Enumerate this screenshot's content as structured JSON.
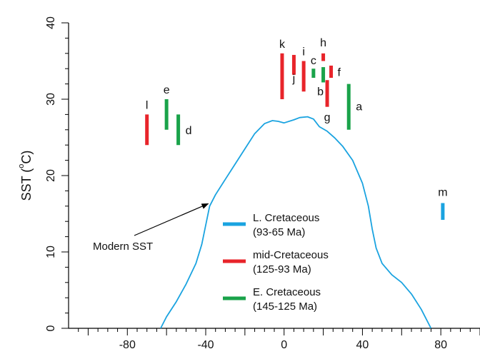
{
  "chart_data": {
    "type": "scatter",
    "title": "",
    "xlabel": "",
    "ylabel": "SST (°C)",
    "ylabel_parts": {
      "main": "SST (",
      "degree": "o",
      "unit": "C)"
    },
    "xlim": [
      -110,
      100
    ],
    "ylim": [
      0,
      40
    ],
    "xticks": [
      -80,
      -40,
      0,
      40,
      80
    ],
    "xtick_labels": [
      "-80",
      "-40",
      "0",
      "40",
      "80"
    ],
    "yticks": [
      0,
      10,
      20,
      30,
      40
    ],
    "ytick_labels": [
      "0",
      "10",
      "20",
      "30",
      "40"
    ],
    "grid": false,
    "legend_position": "bottom-center",
    "series": [
      {
        "name": "L. Cretaceous",
        "sublabel": "(93-65 Ma)",
        "color": "#1aa3e0",
        "ranges": [
          {
            "label": "m",
            "x": 81,
            "ymin": 14.2,
            "ymax": 16.4
          }
        ]
      },
      {
        "name": "mid-Cretaceous",
        "sublabel": "(125-93 Ma)",
        "color": "#e8242a",
        "ranges": [
          {
            "label": "l",
            "x": -70,
            "ymin": 24,
            "ymax": 28
          },
          {
            "label": "k",
            "x": -1,
            "ymin": 30,
            "ymax": 36
          },
          {
            "label": "j",
            "x": 5,
            "ymin": 33.2,
            "ymax": 35.8
          },
          {
            "label": "i",
            "x": 10,
            "ymin": 31,
            "ymax": 35
          },
          {
            "label": "h",
            "x": 20,
            "ymin": 35,
            "ymax": 36
          },
          {
            "label": "g",
            "x": 22,
            "ymin": 29,
            "ymax": 32.5
          },
          {
            "label": "f",
            "x": 24,
            "ymin": 32.8,
            "ymax": 34.4
          }
        ]
      },
      {
        "name": "E. Cretaceous",
        "sublabel": "(145-125 Ma)",
        "color": "#1aa34a",
        "ranges": [
          {
            "label": "e",
            "x": -60,
            "ymin": 26,
            "ymax": 30
          },
          {
            "label": "d",
            "x": -54,
            "ymin": 24,
            "ymax": 28
          },
          {
            "label": "c",
            "x": 15,
            "ymin": 32.8,
            "ymax": 34
          },
          {
            "label": "b",
            "x": 20,
            "ymin": 32.2,
            "ymax": 34.2
          },
          {
            "label": "a",
            "x": 33,
            "ymin": 26,
            "ymax": 32
          }
        ]
      }
    ],
    "curve": {
      "color": "#1aa3e0",
      "points": [
        [
          -63,
          0
        ],
        [
          -60,
          1.5
        ],
        [
          -55,
          3.5
        ],
        [
          -50,
          5.8
        ],
        [
          -45,
          8.5
        ],
        [
          -42,
          11
        ],
        [
          -40,
          13.5
        ],
        [
          -38,
          16
        ],
        [
          -35,
          17.5
        ],
        [
          -30,
          19.5
        ],
        [
          -25,
          21.5
        ],
        [
          -20,
          23.5
        ],
        [
          -15,
          25.5
        ],
        [
          -10,
          26.8
        ],
        [
          -6,
          27.2
        ],
        [
          -3,
          27.1
        ],
        [
          0,
          26.9
        ],
        [
          5,
          27.3
        ],
        [
          8,
          27.6
        ],
        [
          12,
          27.7
        ],
        [
          15,
          27.4
        ],
        [
          18,
          26.4
        ],
        [
          22,
          25.8
        ],
        [
          26,
          24.9
        ],
        [
          30,
          23.8
        ],
        [
          35,
          22
        ],
        [
          40,
          19
        ],
        [
          43,
          16
        ],
        [
          45,
          13
        ],
        [
          47,
          10.5
        ],
        [
          50,
          8.5
        ],
        [
          55,
          7
        ],
        [
          60,
          6
        ],
        [
          65,
          4.5
        ],
        [
          70,
          2.5
        ],
        [
          75,
          0
        ]
      ]
    },
    "annotation": {
      "text": "Modern SST",
      "target": [
        -38,
        16.5
      ]
    }
  }
}
